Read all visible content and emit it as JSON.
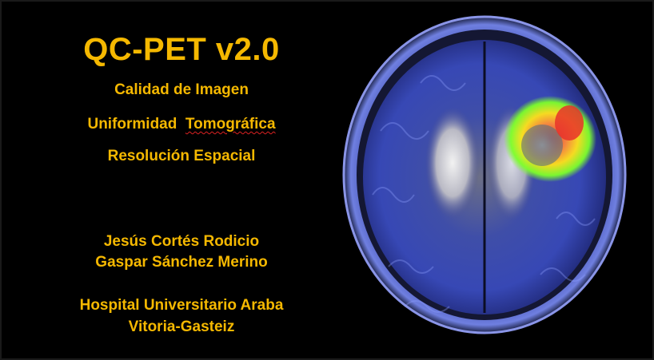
{
  "slide": {
    "title": "QC-PET v2.0",
    "topics": [
      "Calidad de Imagen",
      "Uniformidad",
      "Tomográfica",
      "Resolución Espacial"
    ],
    "authors": [
      "Jesús Cortés Rodicio",
      "Gaspar Sánchez Merino"
    ],
    "institution": [
      "Hospital Universitario Araba",
      "Vitoria-Gasteiz"
    ]
  },
  "colors": {
    "background": "#000000",
    "text": "#f5b800",
    "overlay_blue": "#4a5fd8",
    "hotspot_green": "#7dff2a",
    "hotspot_yellow": "#ffe21a",
    "hotspot_red": "#e8322a"
  },
  "image": {
    "description_icon": "brain-pet-mri-fusion-icon"
  }
}
